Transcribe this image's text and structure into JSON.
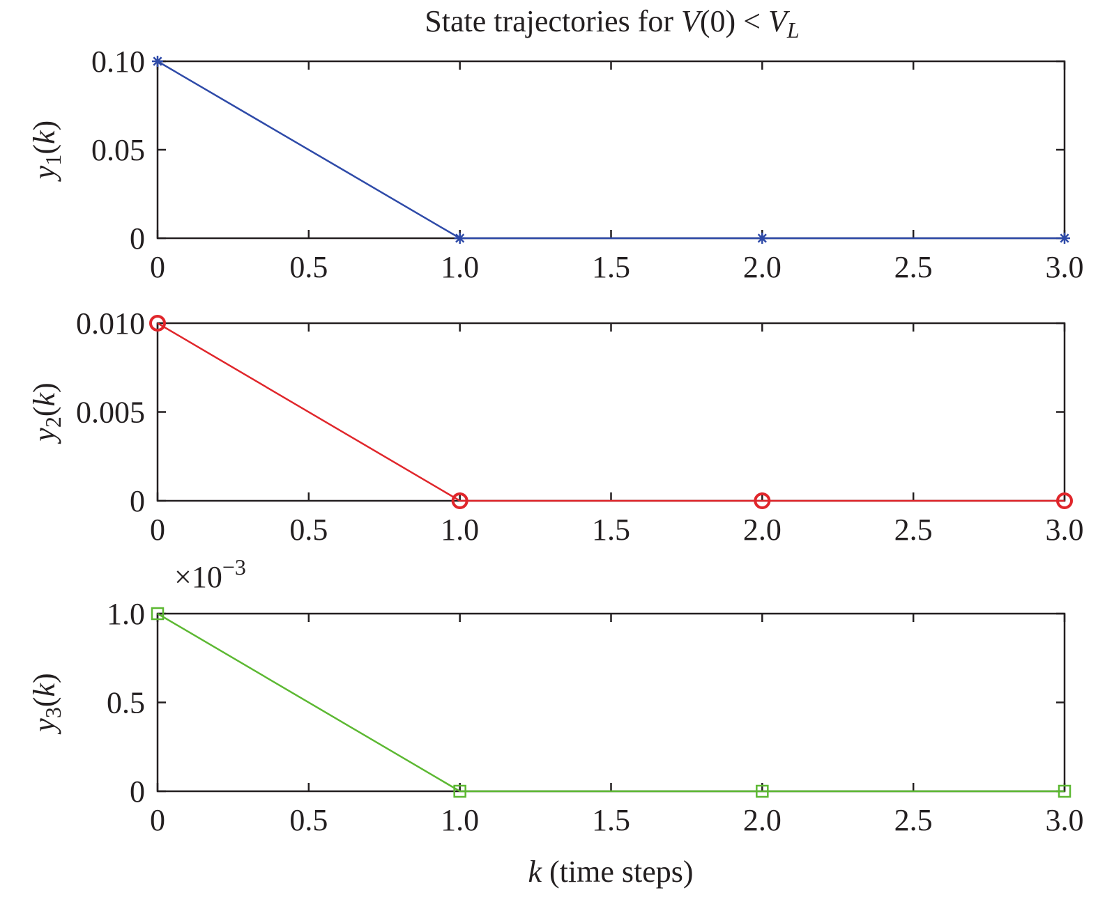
{
  "chart_data": {
    "title": {
      "prefix": "State trajectories for ",
      "v": "V",
      "arg": "(0) < ",
      "v2": "V",
      "sub": "L"
    },
    "xlabel": {
      "var": "k",
      "rest": " (time steps)"
    },
    "grid": false,
    "legend": "none",
    "subplots": [
      {
        "type": "line",
        "name": "y1",
        "ylabel": {
          "var": "y",
          "sub": "1",
          "paren": "(",
          "k": "k",
          "close": ")"
        },
        "x": [
          0,
          1,
          2,
          3
        ],
        "y": [
          0.1,
          0,
          0,
          0
        ],
        "xlim": [
          0,
          3
        ],
        "ylim": [
          0,
          0.1
        ],
        "xticks": [
          0,
          0.5,
          1,
          1.5,
          2,
          2.5,
          3
        ],
        "xtick_labels": [
          "0",
          "0.5",
          "1.0",
          "1.5",
          "2.0",
          "2.5",
          "3.0"
        ],
        "yticks": [
          0,
          0.05,
          0.1
        ],
        "ytick_labels": [
          "0",
          "0.05",
          "0.10"
        ],
        "color": "#2e4aa8",
        "marker": "asterisk",
        "exponent": null
      },
      {
        "type": "line",
        "name": "y2",
        "ylabel": {
          "var": "y",
          "sub": "2",
          "paren": "(",
          "k": "k",
          "close": ")"
        },
        "x": [
          0,
          1,
          2,
          3
        ],
        "y": [
          0.01,
          0,
          0,
          0
        ],
        "xlim": [
          0,
          3
        ],
        "ylim": [
          0,
          0.01
        ],
        "xticks": [
          0,
          0.5,
          1,
          1.5,
          2,
          2.5,
          3
        ],
        "xtick_labels": [
          "0",
          "0.5",
          "1.0",
          "1.5",
          "2.0",
          "2.5",
          "3.0"
        ],
        "yticks": [
          0,
          0.005,
          0.01
        ],
        "ytick_labels": [
          "0",
          "0.005",
          "0.010"
        ],
        "color": "#e0262b",
        "marker": "circle",
        "exponent": null
      },
      {
        "type": "line",
        "name": "y3",
        "ylabel": {
          "var": "y",
          "sub": "3",
          "paren": "(",
          "k": "k",
          "close": ")"
        },
        "x": [
          0,
          1,
          2,
          3
        ],
        "y": [
          1.0,
          0,
          0,
          0
        ],
        "xlim": [
          0,
          3
        ],
        "ylim": [
          0,
          1.0
        ],
        "xticks": [
          0,
          0.5,
          1,
          1.5,
          2,
          2.5,
          3
        ],
        "xtick_labels": [
          "0",
          "0.5",
          "1.0",
          "1.5",
          "2.0",
          "2.5",
          "3.0"
        ],
        "yticks": [
          0,
          0.5,
          1.0
        ],
        "ytick_labels": [
          "0",
          "0.5",
          "1.0"
        ],
        "color": "#5cb832",
        "marker": "square",
        "exponent": {
          "base": "×10",
          "power": "−3"
        }
      }
    ]
  }
}
